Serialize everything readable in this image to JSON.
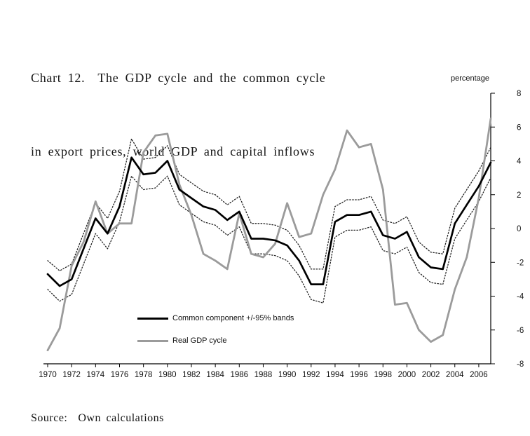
{
  "header": {
    "line1": "Chart 12.  The GDP cycle and the common cycle",
    "line2": "in export prices, world GDP and capital inflows"
  },
  "source": "Source:  Own calculations",
  "legend": {
    "items": [
      {
        "label": "Common component +/-95% bands",
        "color": "#000000"
      },
      {
        "label": "Real GDP cycle",
        "color": "#9b9b9b"
      }
    ]
  },
  "chart_data": {
    "type": "line",
    "title": "Chart 12. The GDP cycle and the common cycle in export prices, world GDP and capital inflows",
    "ylabel": "percentage",
    "xlabel": "",
    "ylim": [
      -8,
      8
    ],
    "grid": false,
    "legend_position": "inside-lower-left",
    "yticks": [
      8,
      6,
      4,
      2,
      0,
      -2,
      -4,
      -6,
      -8
    ],
    "xticks": [
      1970,
      1972,
      1974,
      1976,
      1978,
      1980,
      1982,
      1984,
      1986,
      1988,
      1990,
      1992,
      1994,
      1996,
      1998,
      2000,
      2002,
      2004,
      2006
    ],
    "x": [
      1970,
      1971,
      1972,
      1973,
      1974,
      1975,
      1976,
      1977,
      1978,
      1979,
      1980,
      1981,
      1982,
      1983,
      1984,
      1985,
      1986,
      1987,
      1988,
      1989,
      1990,
      1991,
      1992,
      1993,
      1994,
      1995,
      1996,
      1997,
      1998,
      1999,
      2000,
      2001,
      2002,
      2003,
      2004,
      2005,
      2006,
      2007
    ],
    "series": [
      {
        "name": "Upper 95% band",
        "color": "#222222",
        "width": 1.3,
        "dash": "1.5 2.5",
        "values": [
          -1.9,
          -2.5,
          -2.1,
          -0.3,
          1.5,
          0.6,
          2.2,
          5.3,
          4.1,
          4.2,
          4.9,
          3.2,
          2.7,
          2.2,
          2.0,
          1.4,
          1.9,
          0.3,
          0.3,
          0.2,
          -0.1,
          -1.0,
          -2.4,
          -2.4,
          1.3,
          1.7,
          1.7,
          1.9,
          0.5,
          0.3,
          0.7,
          -0.8,
          -1.4,
          -1.5,
          1.2,
          2.3,
          3.4,
          4.8
        ]
      },
      {
        "name": "Lower 95% band",
        "color": "#222222",
        "width": 1.3,
        "dash": "1.5 2.5",
        "values": [
          -3.6,
          -4.3,
          -3.9,
          -2.1,
          -0.3,
          -1.2,
          0.4,
          3.1,
          2.3,
          2.4,
          3.1,
          1.4,
          0.9,
          0.4,
          0.2,
          -0.4,
          0.1,
          -1.5,
          -1.5,
          -1.6,
          -1.9,
          -2.8,
          -4.2,
          -4.4,
          -0.5,
          -0.1,
          -0.1,
          0.1,
          -1.3,
          -1.5,
          -1.1,
          -2.6,
          -3.2,
          -3.3,
          -0.6,
          0.5,
          1.6,
          3.0
        ]
      },
      {
        "name": "Real GDP cycle",
        "color": "#9b9b9b",
        "width": 2.8,
        "dash": "",
        "values": [
          -7.2,
          -5.9,
          -2.2,
          -0.8,
          1.6,
          -0.3,
          0.3,
          0.3,
          4.5,
          5.5,
          5.6,
          2.6,
          0.8,
          -1.5,
          -1.9,
          -2.4,
          0.9,
          -1.5,
          -1.7,
          -0.9,
          1.5,
          -0.5,
          -0.3,
          2.0,
          3.5,
          5.8,
          4.8,
          5.0,
          2.3,
          -4.5,
          -4.4,
          -6.0,
          -6.7,
          -6.3,
          -3.6,
          -1.7,
          1.8,
          6.5
        ]
      },
      {
        "name": "Common component",
        "color": "#000000",
        "width": 2.7,
        "dash": "",
        "values": [
          -2.7,
          -3.4,
          -3.0,
          -1.2,
          0.6,
          -0.3,
          1.3,
          4.2,
          3.2,
          3.3,
          4.0,
          2.3,
          1.8,
          1.3,
          1.1,
          0.5,
          1.0,
          -0.6,
          -0.6,
          -0.7,
          -1.0,
          -1.9,
          -3.3,
          -3.3,
          0.4,
          0.8,
          0.8,
          1.0,
          -0.4,
          -0.6,
          -0.2,
          -1.7,
          -2.3,
          -2.4,
          0.3,
          1.4,
          2.5,
          3.9
        ]
      }
    ]
  }
}
